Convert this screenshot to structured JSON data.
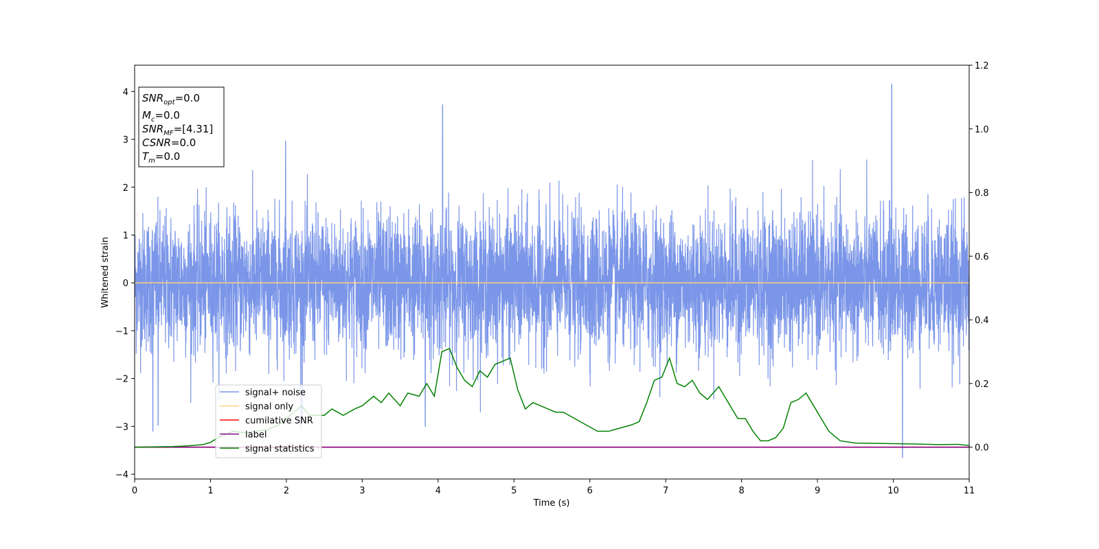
{
  "chart_data": {
    "type": "line",
    "xlabel": "Time (s)",
    "ylabel": "Whitened strain",
    "xlim": [
      0,
      11
    ],
    "ylim": [
      -4.1,
      4.55
    ],
    "y2lim": [
      -0.1,
      1.2
    ],
    "x_ticks": [
      "0",
      "1",
      "2",
      "3",
      "4",
      "5",
      "6",
      "7",
      "8",
      "9",
      "10",
      "11"
    ],
    "y_ticks": [
      "−4",
      "−3",
      "−2",
      "−1",
      "0",
      "1",
      "2",
      "3",
      "4"
    ],
    "y2_ticks": [
      "0.0",
      "0.2",
      "0.4",
      "0.6",
      "0.8",
      "1.0",
      "1.2"
    ],
    "legend_position": "lower-left",
    "series": [
      {
        "name": "signal+ noise",
        "color": "#7b96e8",
        "axis": "left",
        "kind": "noise",
        "range_low": -3.65,
        "range_high": 4.15
      },
      {
        "name": "signal only",
        "color": "#ffcf80",
        "axis": "left",
        "values_constant": 0
      },
      {
        "name": "cumilative SNR",
        "color": "#ff0000",
        "axis": "right",
        "values_constant": 0
      },
      {
        "name": "label",
        "color": "#800080",
        "axis": "right",
        "values_constant": 0
      },
      {
        "name": "signal statistics",
        "color": "#008000",
        "axis": "right",
        "x": [
          0,
          0.5,
          0.7,
          0.9,
          1.0,
          1.1,
          1.2,
          1.3,
          1.45,
          1.6,
          1.75,
          1.9,
          2.0,
          2.1,
          2.2,
          2.3,
          2.4,
          2.5,
          2.6,
          2.75,
          2.9,
          3.0,
          3.15,
          3.25,
          3.35,
          3.5,
          3.6,
          3.75,
          3.85,
          3.95,
          4.05,
          4.15,
          4.25,
          4.35,
          4.45,
          4.55,
          4.65,
          4.75,
          4.85,
          4.95,
          5.05,
          5.15,
          5.25,
          5.35,
          5.45,
          5.55,
          5.65,
          5.8,
          5.95,
          6.1,
          6.25,
          6.4,
          6.55,
          6.65,
          6.75,
          6.85,
          6.95,
          7.05,
          7.15,
          7.25,
          7.35,
          7.45,
          7.55,
          7.7,
          7.85,
          7.95,
          8.05,
          8.15,
          8.25,
          8.35,
          8.45,
          8.55,
          8.65,
          8.75,
          8.85,
          8.95,
          9.05,
          9.15,
          9.3,
          9.5,
          9.75,
          10.0,
          10.3,
          10.6,
          10.85,
          11.0
        ],
        "values": [
          0.0,
          0.002,
          0.004,
          0.008,
          0.015,
          0.03,
          0.04,
          0.05,
          0.045,
          0.05,
          0.055,
          0.07,
          0.09,
          0.11,
          0.13,
          0.1,
          0.1,
          0.1,
          0.12,
          0.1,
          0.12,
          0.13,
          0.16,
          0.14,
          0.17,
          0.13,
          0.17,
          0.16,
          0.2,
          0.16,
          0.3,
          0.31,
          0.25,
          0.21,
          0.19,
          0.24,
          0.22,
          0.26,
          0.27,
          0.28,
          0.18,
          0.12,
          0.14,
          0.13,
          0.12,
          0.11,
          0.11,
          0.09,
          0.07,
          0.05,
          0.05,
          0.06,
          0.07,
          0.08,
          0.14,
          0.21,
          0.22,
          0.28,
          0.2,
          0.19,
          0.21,
          0.17,
          0.15,
          0.19,
          0.13,
          0.09,
          0.09,
          0.05,
          0.02,
          0.02,
          0.03,
          0.06,
          0.14,
          0.15,
          0.17,
          0.13,
          0.09,
          0.05,
          0.02,
          0.013,
          0.012,
          0.011,
          0.01,
          0.008,
          0.009,
          0.005
        ]
      }
    ]
  },
  "info_box": {
    "l1_base": "SNR",
    "l1_sub": "opt",
    "l1_val": "=0.0",
    "l2_base": "M",
    "l2_sub": "c",
    "l2_val": "=0.0",
    "l3_base": "SNR",
    "l3_sub": "MF",
    "l3_val": "=[4.31]",
    "l4_base": "CSNR",
    "l4_val": "=0.0",
    "l5_base": "T",
    "l5_sub": "m",
    "l5_val": "=0.0"
  }
}
